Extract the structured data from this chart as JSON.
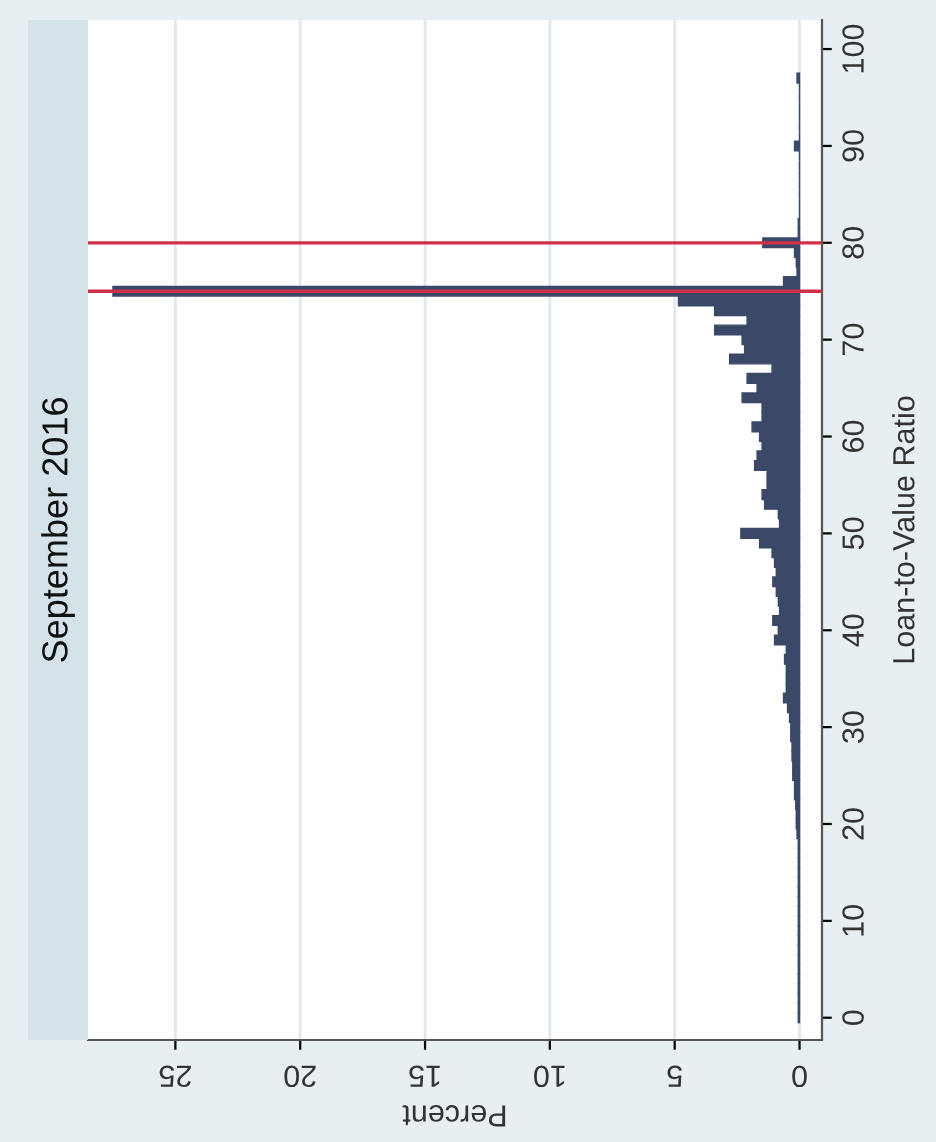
{
  "chart_data": {
    "type": "histogram",
    "title": "September 2016",
    "xlabel": "Percent",
    "ylabel": "Loan-to-Value Ratio",
    "orientation": "horizontal",
    "color": "#3b4868",
    "bins": [
      -0.5,
      0.5,
      1.5,
      2.5,
      3.5,
      4.5,
      5.5,
      6.5,
      7.5,
      8.5,
      9.5,
      10.5,
      11.5,
      12.5,
      13.5,
      14.5,
      15.5,
      16.5,
      17.5,
      18.5,
      19.5,
      20.5,
      21.5,
      22.5,
      23.5,
      24.5,
      25.5,
      26.5,
      27.5,
      28.5,
      29.5,
      30.5,
      31.5,
      32.5,
      33.5,
      34.5,
      35.5,
      36.5,
      37.5,
      38.5,
      39.5,
      40.5,
      41.5,
      42.5,
      43.5,
      44.5,
      45.5,
      46.5,
      47.5,
      48.5,
      49.5,
      50.5,
      51.5,
      52.5,
      53.5,
      54.5,
      55.5,
      56.5,
      57.5,
      58.5,
      59.5,
      60.5,
      61.5,
      62.5,
      63.5,
      64.5,
      65.5,
      66.5,
      67.5,
      68.5,
      69.5,
      70.5,
      71.5,
      72.5,
      73.5,
      74.5,
      75.5,
      76.5,
      77.5,
      78.5,
      79.5,
      80.5,
      81.5,
      82.5,
      83.5,
      84.5,
      85.5,
      86.5,
      87.5,
      88.5,
      89.5,
      90.5,
      91.5,
      92.5,
      93.5,
      94.5,
      95.5,
      96.5,
      97.5
    ],
    "values": [
      0.05,
      0.05,
      0.05,
      0.05,
      0.05,
      0.05,
      0.05,
      0.05,
      0.05,
      0.05,
      0.05,
      0.05,
      0.05,
      0.05,
      0.05,
      0.05,
      0.05,
      0.05,
      0.05,
      0.1,
      0.13,
      0.13,
      0.15,
      0.2,
      0.2,
      0.27,
      0.27,
      0.3,
      0.3,
      0.35,
      0.35,
      0.4,
      0.48,
      0.64,
      0.53,
      0.53,
      0.53,
      0.6,
      0.53,
      1.0,
      0.85,
      1.07,
      0.8,
      0.85,
      0.93,
      1.07,
      0.93,
      1.0,
      1.1,
      1.6,
      2.35,
      0.8,
      0.85,
      1.4,
      1.5,
      1.3,
      1.3,
      1.8,
      1.7,
      1.5,
      1.6,
      1.9,
      1.5,
      1.5,
      2.3,
      1.7,
      2.1,
      1.1,
      2.8,
      2.2,
      2.3,
      3.4,
      2.1,
      3.4,
      4.85,
      27.5,
      0.64,
      0.1,
      0.13,
      0.2,
      1.47,
      0.05,
      0.05,
      0,
      0,
      0,
      0,
      0,
      0,
      0,
      0.2,
      0,
      0,
      0,
      0,
      0,
      0,
      0.1
    ],
    "xlim": [
      28.5,
      -0.9
    ],
    "xticks": [
      0,
      5,
      10,
      15,
      20,
      25
    ],
    "ylim": [
      -2.3,
      103
    ],
    "yticks": [
      0,
      10,
      20,
      30,
      40,
      50,
      60,
      70,
      80,
      90,
      100
    ],
    "grid": "x",
    "ref_lines": [
      {
        "axis": "y",
        "value": 75,
        "color": "#d0304a"
      },
      {
        "axis": "y",
        "value": 80,
        "color": "#d0304a"
      }
    ]
  }
}
